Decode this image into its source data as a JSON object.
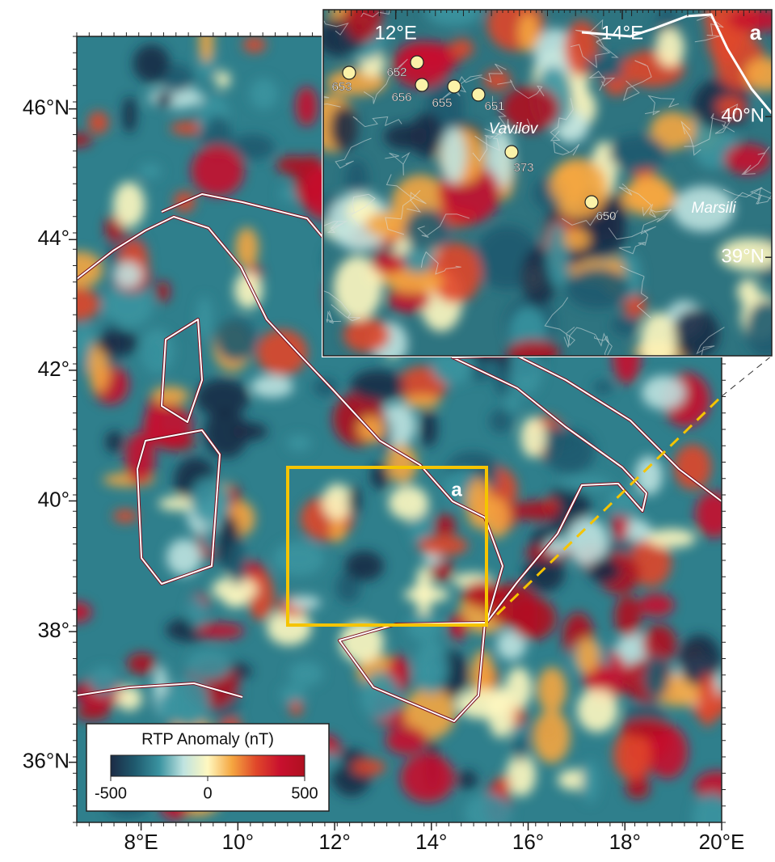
{
  "map": {
    "xlim": [
      6.67,
      20
    ],
    "ylim": [
      35.08,
      47.11
    ],
    "lon_ticks": [
      {
        "value": 8,
        "label": "8°E"
      },
      {
        "value": 10,
        "label": "10°"
      },
      {
        "value": 12,
        "label": "12°"
      },
      {
        "value": 14,
        "label": "14°"
      },
      {
        "value": 16,
        "label": "16°"
      },
      {
        "value": 18,
        "label": "18°"
      },
      {
        "value": 20,
        "label": "20°E"
      }
    ],
    "lat_ticks": [
      {
        "value": 36,
        "label": "36°N"
      },
      {
        "value": 38,
        "label": "38°"
      },
      {
        "value": 40,
        "label": "40°"
      },
      {
        "value": 42,
        "label": "42°"
      },
      {
        "value": 44,
        "label": "44°"
      },
      {
        "value": 46,
        "label": "46°N"
      }
    ],
    "box_label": "a"
  },
  "inset": {
    "label": "a",
    "xlim": [
      11.36,
      15.32
    ],
    "ylim": [
      38.3,
      40.76
    ],
    "lon_ticks": [
      {
        "value": 12,
        "label": "12°E"
      },
      {
        "value": 14,
        "label": "14°E"
      }
    ],
    "lat_ticks": [
      {
        "value": 40,
        "label": "40°N"
      },
      {
        "value": 39,
        "label": "39°N"
      }
    ],
    "sites": [
      "653",
      "652",
      "656",
      "655",
      "651",
      "373",
      "650"
    ],
    "features": [
      "Vavilov",
      "Marsili"
    ]
  },
  "colorbar": {
    "title": "RTP Anomaly (nT)",
    "range": [
      -500,
      500
    ],
    "ticks": [
      -500,
      0,
      500
    ],
    "colors": [
      "#1b2b45",
      "#1f5a6e",
      "#3a93a0",
      "#bfe3e0",
      "#fff8c0",
      "#f5a640",
      "#e0472a",
      "#c8102e",
      "#b01020"
    ]
  }
}
